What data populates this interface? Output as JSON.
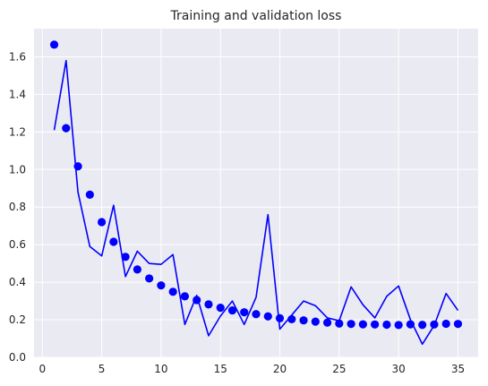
{
  "chart_data": {
    "type": "line",
    "title": "Training and validation loss",
    "xlabel": "",
    "ylabel": "",
    "xlim": [
      -0.7,
      36.7
    ],
    "ylim": [
      0.0,
      1.75
    ],
    "xticks": [
      0,
      5,
      10,
      15,
      20,
      25,
      30,
      35
    ],
    "yticks": [
      0.0,
      0.2,
      0.4,
      0.6,
      0.8,
      1.0,
      1.2,
      1.4,
      1.6
    ],
    "grid": true,
    "legend": false,
    "background": "#eaeaf2",
    "grid_color": "#ffffff",
    "series": [
      {
        "style": "markers",
        "color": "#0000ff",
        "x": [
          1,
          2,
          3,
          4,
          5,
          6,
          7,
          8,
          9,
          10,
          11,
          12,
          13,
          14,
          15,
          16,
          17,
          18,
          19,
          20,
          21,
          22,
          23,
          24,
          25,
          26,
          27,
          28,
          29,
          30,
          31,
          32,
          33,
          34,
          35
        ],
        "values": [
          1.665,
          1.22,
          1.017,
          0.866,
          0.72,
          0.615,
          0.535,
          0.468,
          0.42,
          0.383,
          0.349,
          0.325,
          0.305,
          0.282,
          0.264,
          0.25,
          0.24,
          0.23,
          0.218,
          0.208,
          0.203,
          0.197,
          0.19,
          0.185,
          0.18,
          0.178,
          0.176,
          0.175,
          0.174,
          0.172,
          0.176,
          0.173,
          0.175,
          0.179,
          0.178
        ]
      },
      {
        "style": "line",
        "color": "#0000ff",
        "x": [
          1,
          2,
          3,
          4,
          5,
          6,
          7,
          8,
          9,
          10,
          11,
          12,
          13,
          14,
          15,
          16,
          17,
          18,
          19,
          20,
          21,
          22,
          23,
          24,
          25,
          26,
          27,
          28,
          29,
          30,
          31,
          32,
          33,
          34,
          35
        ],
        "values": [
          1.21,
          1.58,
          0.88,
          0.59,
          0.54,
          0.81,
          0.43,
          0.565,
          0.5,
          0.495,
          0.547,
          0.175,
          0.33,
          0.115,
          0.22,
          0.3,
          0.175,
          0.32,
          0.76,
          0.15,
          0.225,
          0.3,
          0.275,
          0.21,
          0.195,
          0.375,
          0.28,
          0.21,
          0.325,
          0.38,
          0.2,
          0.07,
          0.17,
          0.34,
          0.25
        ]
      }
    ]
  }
}
